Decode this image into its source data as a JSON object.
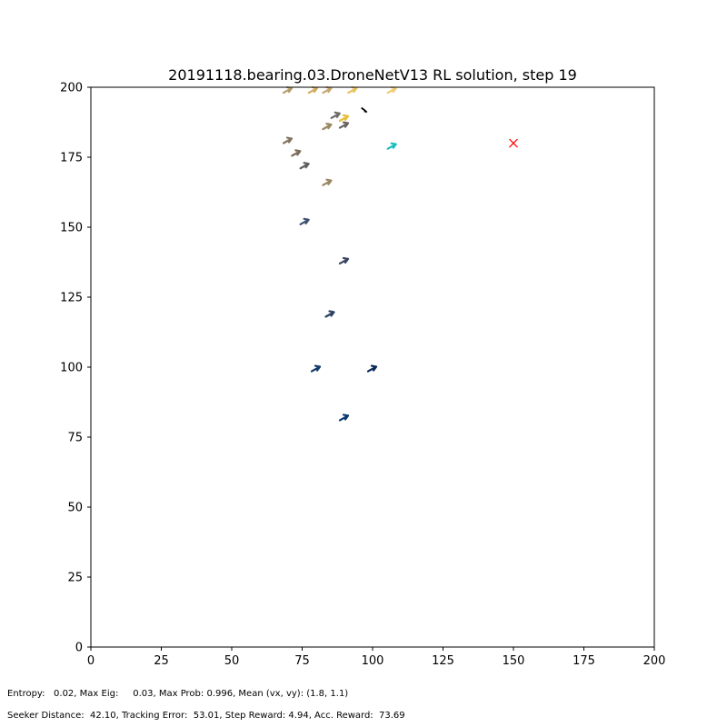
{
  "chart_data": {
    "type": "scatter",
    "title": "20191118.bearing.03.DroneNetV13 RL solution, step 19",
    "xlabel": "",
    "ylabel": "",
    "xlim": [
      0,
      200
    ],
    "ylim": [
      0,
      200
    ],
    "xticks": [
      0,
      25,
      50,
      75,
      100,
      125,
      150,
      175,
      200
    ],
    "yticks": [
      0,
      25,
      50,
      75,
      100,
      125,
      150,
      175,
      200
    ],
    "grid": false,
    "series": [
      {
        "marker": "arrow",
        "points": [
          {
            "x": 90,
            "y": 82,
            "color": "#0b3a73"
          },
          {
            "x": 80,
            "y": 99.5,
            "color": "#123a6a"
          },
          {
            "x": 100,
            "y": 99.5,
            "color": "#0a2a5a"
          },
          {
            "x": 85,
            "y": 119,
            "color": "#2b3f62"
          },
          {
            "x": 90,
            "y": 138,
            "color": "#3a4560"
          },
          {
            "x": 76,
            "y": 152,
            "color": "#3c5070"
          },
          {
            "x": 84,
            "y": 166,
            "color": "#9a8660"
          },
          {
            "x": 76,
            "y": 172,
            "color": "#5f5f5f"
          },
          {
            "x": 73,
            "y": 176.5,
            "color": "#7b6c5b"
          },
          {
            "x": 70,
            "y": 181,
            "color": "#837460"
          },
          {
            "x": 84,
            "y": 186,
            "color": "#9a8860"
          },
          {
            "x": 90,
            "y": 186.5,
            "color": "#676360"
          },
          {
            "x": 87,
            "y": 190,
            "color": "#6e6a66"
          },
          {
            "x": 90,
            "y": 189,
            "color": "#e6bf3a"
          },
          {
            "x": 107,
            "y": 179,
            "color": "#17bfbf"
          },
          {
            "x": 70,
            "y": 199,
            "color": "#b59d6a"
          },
          {
            "x": 79,
            "y": 199,
            "color": "#d2ac5e"
          },
          {
            "x": 84,
            "y": 199,
            "color": "#c8a66e"
          },
          {
            "x": 93,
            "y": 199,
            "color": "#e8c060"
          },
          {
            "x": 107,
            "y": 199,
            "color": "#f0cc70"
          }
        ]
      },
      {
        "marker": "black-trail",
        "points": [
          {
            "x": 97,
            "y": 192
          }
        ],
        "color": "#000000"
      },
      {
        "marker": "x",
        "points": [
          {
            "x": 150,
            "y": 180
          }
        ],
        "color": "#ff0000"
      }
    ]
  },
  "footer": {
    "line1": "Entropy:   0.02, Max Eig:     0.03, Max Prob: 0.996, Mean (vx, vy): (1.8, 1.1)",
    "line2": "Seeker Distance:  42.10, Tracking Error:  53.01, Step Reward: 4.94, Acc. Reward:  73.69"
  }
}
